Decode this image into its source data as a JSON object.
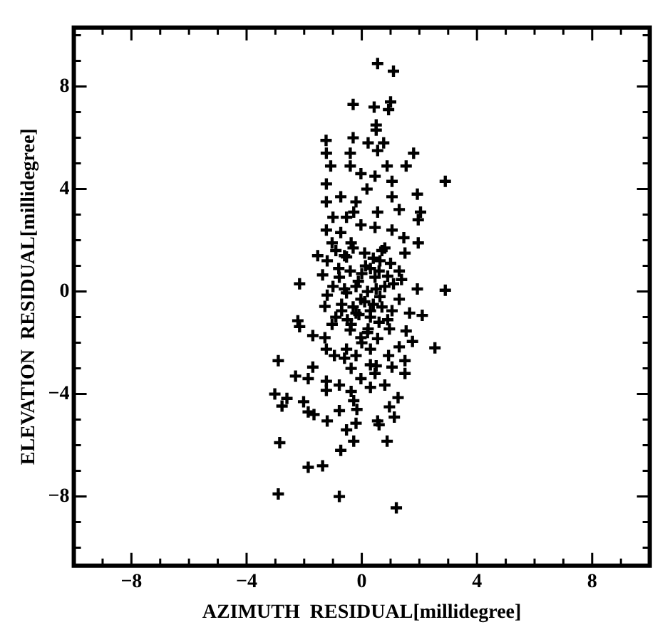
{
  "chart_data": {
    "type": "scatter",
    "xlabel": "AZIMUTH  RESIDUAL[millidegree]",
    "ylabel": "ELEVATION  RESIDUAL[millidegree]",
    "marker": "cross",
    "grid": false,
    "legend": false,
    "xlim": [
      -10,
      10
    ],
    "ylim": [
      -10.7,
      10.3
    ],
    "xticks": [
      {
        "value": -9,
        "label": null
      },
      -8,
      {
        "value": -7,
        "label": null
      },
      {
        "value": -6,
        "label": null
      },
      {
        "value": -5,
        "label": null
      },
      -4,
      {
        "value": -3,
        "label": null
      },
      {
        "value": -2,
        "label": null
      },
      {
        "value": -1,
        "label": null
      },
      0,
      {
        "value": 1,
        "label": null
      },
      {
        "value": 2,
        "label": null
      },
      {
        "value": 3,
        "label": null
      },
      4,
      {
        "value": 5,
        "label": null
      },
      {
        "value": 6,
        "label": null
      },
      {
        "value": 7,
        "label": null
      },
      8,
      {
        "value": 9,
        "label": null
      }
    ],
    "yticks": [
      {
        "value": -10,
        "label": null
      },
      {
        "value": -9,
        "label": null
      },
      -8,
      {
        "value": -7,
        "label": null
      },
      {
        "value": -6,
        "label": null
      },
      {
        "value": -5,
        "label": null
      },
      -4,
      {
        "value": -3,
        "label": null
      },
      {
        "value": -2,
        "label": null
      },
      {
        "value": -1,
        "label": null
      },
      0,
      {
        "value": 1,
        "label": null
      },
      {
        "value": 2,
        "label": null
      },
      {
        "value": 3,
        "label": null
      },
      4,
      {
        "value": 5,
        "label": null
      },
      {
        "value": 6,
        "label": null
      },
      {
        "value": 7,
        "label": null
      },
      8,
      {
        "value": 9,
        "label": null
      },
      {
        "value": 10,
        "label": null
      }
    ],
    "series": [
      {
        "color": "#000000",
        "x": [
          0.55,
          1.1,
          -0.3,
          0.43,
          1.0,
          0.93,
          0.5,
          0.5,
          -1.24,
          -0.3,
          0.22,
          0.76,
          0.55,
          -1.23,
          -0.4,
          1.8,
          -1.08,
          -0.4,
          0.88,
          1.54,
          -0.03,
          0.46,
          1.05,
          2.9,
          -1.23,
          0.18,
          -0.73,
          -1.23,
          -0.2,
          1.05,
          1.93,
          -0.28,
          0.55,
          1.3,
          2.04,
          1.96,
          -1.0,
          -0.53,
          -0.03,
          0.46,
          -1.23,
          -0.73,
          1.05,
          1.46,
          1.96,
          -1.53,
          -1.03,
          -0.37,
          0.8,
          1.5,
          -1.2,
          -0.53,
          0.13,
          0.63,
          1.3,
          -2.16,
          -1.36,
          -0.78,
          -0.12,
          0.46,
          1.38,
          1.93,
          2.9,
          -1.2,
          -0.53,
          -0.03,
          0.63,
          1.3,
          -1.28,
          -0.7,
          -0.2,
          0.3,
          1.05,
          1.66,
          2.1,
          -2.22,
          -2.16,
          -1.03,
          -0.37,
          0.22,
          0.96,
          1.54,
          -1.7,
          -1.28,
          -0.03,
          0.55,
          1.76,
          -1.23,
          -0.53,
          0.3,
          1.3,
          2.54,
          -0.95,
          -0.2,
          0.93,
          1.5,
          -2.9,
          -1.7,
          -0.37,
          0.3,
          1.05,
          1.5,
          -2.3,
          -1.86,
          -1.23,
          -0.78,
          -0.03,
          0.46,
          0.8,
          -1.23,
          -0.37,
          0.3,
          1.26,
          -3.02,
          -2.6,
          -2.77,
          -2.02,
          -1.86,
          -1.66,
          -0.78,
          -0.28,
          -0.17,
          -1.2,
          -0.2,
          0.55,
          0.96,
          1.13,
          -0.53,
          0.6,
          -0.28,
          0.88,
          -2.85,
          -0.73,
          -1.86,
          -1.36,
          -2.9,
          -0.78,
          1.2,
          -0.9,
          -0.6,
          -0.3,
          0.1,
          0.4,
          0.7,
          1.0,
          -0.8,
          -0.4,
          0.0,
          0.3,
          0.6,
          0.9,
          -1.0,
          -0.6,
          -0.2,
          0.2,
          0.5,
          0.8,
          1.1,
          -0.7,
          -0.3,
          0.1,
          0.4,
          0.7,
          -0.9,
          -0.5,
          -0.1,
          0.3,
          0.6,
          0.9,
          -0.4,
          0.0,
          0.2,
          -0.6,
          0.5
        ],
        "values": [
          8.9,
          8.6,
          7.3,
          7.2,
          7.4,
          7.1,
          6.5,
          6.3,
          5.9,
          6.0,
          5.8,
          5.8,
          5.5,
          5.4,
          5.4,
          5.4,
          4.9,
          4.9,
          4.9,
          4.9,
          4.6,
          4.5,
          4.3,
          4.3,
          4.2,
          4.0,
          3.7,
          3.5,
          3.5,
          3.7,
          3.8,
          3.1,
          3.1,
          3.2,
          3.1,
          2.8,
          2.9,
          2.9,
          2.6,
          2.5,
          2.4,
          2.3,
          2.4,
          2.1,
          1.9,
          1.4,
          1.9,
          1.9,
          1.7,
          1.5,
          1.2,
          1.35,
          1.0,
          1.2,
          0.8,
          0.3,
          0.65,
          0.56,
          0.4,
          0.56,
          0.47,
          0.1,
          0.05,
          -0.14,
          -0.05,
          -0.3,
          -0.2,
          -0.3,
          -0.58,
          -0.75,
          -0.84,
          -0.75,
          -0.75,
          -0.84,
          -0.93,
          -1.14,
          -1.37,
          -1.28,
          -1.28,
          -1.46,
          -1.46,
          -1.54,
          -1.72,
          -1.8,
          -1.8,
          -1.84,
          -1.95,
          -2.25,
          -2.25,
          -2.25,
          -2.16,
          -2.2,
          -2.5,
          -2.5,
          -2.5,
          -2.7,
          -2.7,
          -2.95,
          -3.0,
          -2.86,
          -2.95,
          -3.2,
          -3.3,
          -3.4,
          -3.5,
          -3.65,
          -3.4,
          -3.2,
          -3.65,
          -3.86,
          -3.9,
          -3.74,
          -4.14,
          -4.0,
          -4.17,
          -4.47,
          -4.3,
          -4.7,
          -4.8,
          -4.65,
          -4.26,
          -4.6,
          -5.05,
          -5.14,
          -5.05,
          -4.5,
          -4.9,
          -5.4,
          -5.2,
          -5.84,
          -5.84,
          -5.9,
          -6.2,
          -6.86,
          -6.8,
          -7.9,
          -8.0,
          -8.44,
          1.6,
          1.4,
          1.7,
          1.5,
          1.3,
          1.6,
          1.1,
          0.9,
          0.8,
          0.7,
          0.9,
          0.8,
          0.6,
          0.2,
          0.1,
          0.2,
          0.0,
          0.1,
          0.2,
          0.3,
          -0.5,
          -0.6,
          -0.4,
          -0.5,
          -0.6,
          -1.0,
          -1.1,
          -0.9,
          -1.0,
          -1.2,
          -1.1,
          -1.5,
          -2.0,
          -1.6,
          -2.6,
          -2.9
        ]
      }
    ]
  }
}
